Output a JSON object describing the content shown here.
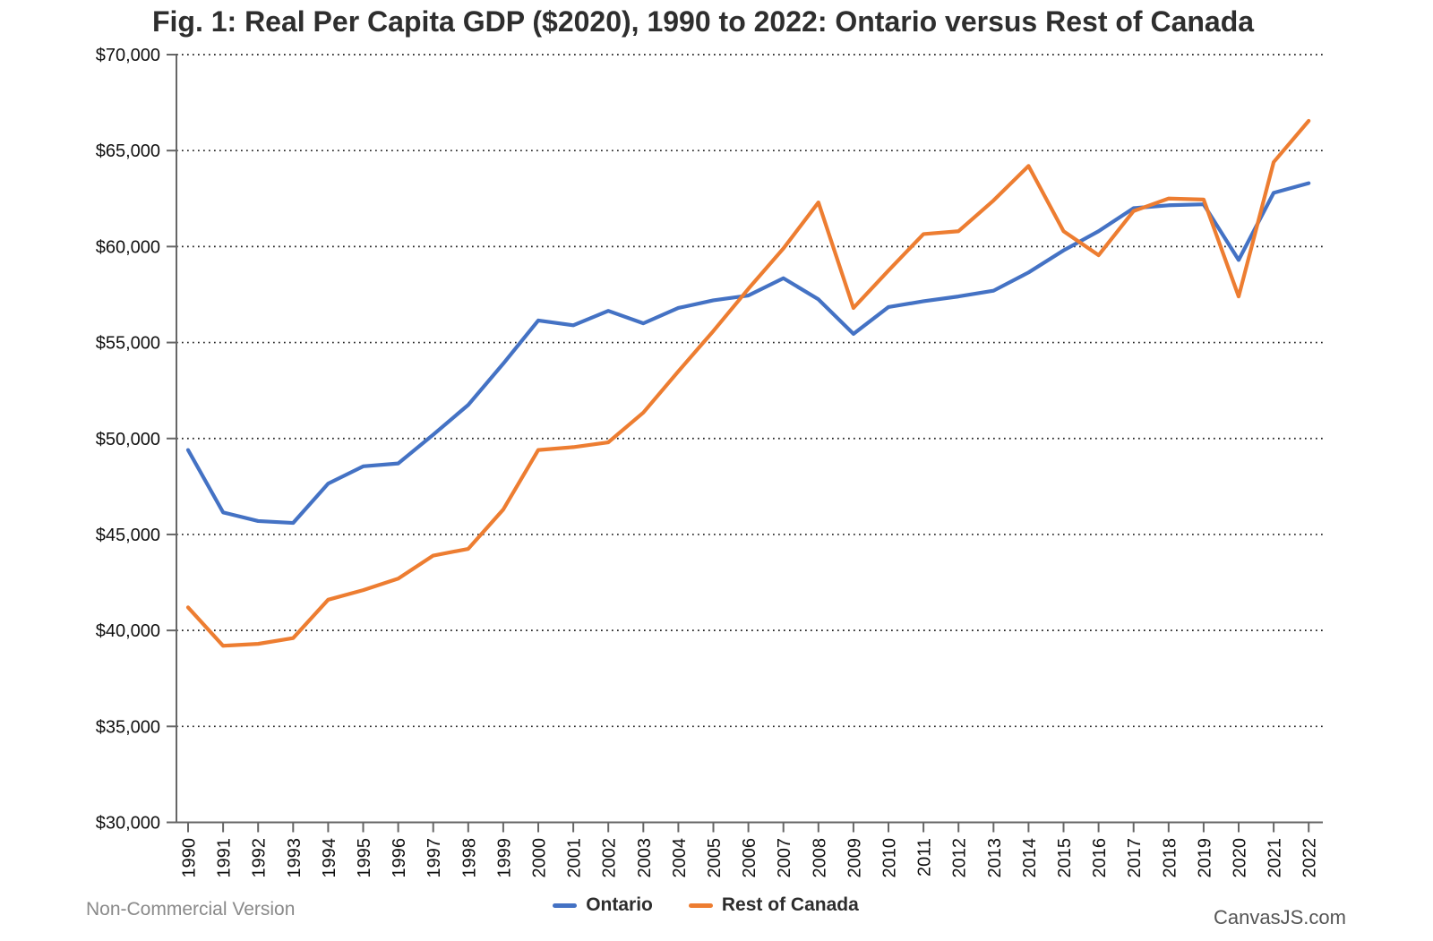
{
  "header": {
    "title": "Fig. 1: Real Per Capita GDP ($2020), 1990 to 2022: Ontario versus Rest of Canada"
  },
  "chart_data": {
    "type": "line",
    "title": "Fig. 1: Real Per Capita GDP ($2020), 1990 to 2022: Ontario versus Rest of Canada",
    "x_years": [
      1990,
      1991,
      1992,
      1993,
      1994,
      1995,
      1996,
      1997,
      1998,
      1999,
      2000,
      2001,
      2002,
      2003,
      2004,
      2005,
      2006,
      2007,
      2008,
      2009,
      2010,
      2011,
      2012,
      2013,
      2014,
      2015,
      2016,
      2017,
      2018,
      2019,
      2020,
      2021,
      2022
    ],
    "series": [
      {
        "name": "Ontario",
        "color": "#4472c4",
        "values": [
          49400,
          46150,
          45700,
          45600,
          47650,
          48550,
          48700,
          50200,
          51750,
          53900,
          56150,
          55900,
          56650,
          56000,
          56800,
          57200,
          57450,
          58350,
          57250,
          55450,
          56850,
          57150,
          57400,
          57700,
          58650,
          59800,
          60800,
          62000,
          62150,
          62200,
          59300,
          62800,
          63300
        ]
      },
      {
        "name": "Rest of Canada",
        "color": "#ed7d31",
        "values": [
          41200,
          39200,
          39300,
          39600,
          41600,
          42100,
          42700,
          43900,
          44250,
          46300,
          49400,
          49550,
          49800,
          51350,
          53500,
          55600,
          57800,
          59900,
          62300,
          56800,
          58750,
          60650,
          60800,
          62400,
          64200,
          60800,
          59550,
          61850,
          62500,
          62450,
          57400,
          64400,
          66550
        ]
      }
    ],
    "y_axis": {
      "min": 30000,
      "max": 70000,
      "interval": 5000,
      "tick_labels": [
        "$30,000",
        "$35,000",
        "$40,000",
        "$45,000",
        "$50,000",
        "$55,000",
        "$60,000",
        "$65,000",
        "$70,000"
      ]
    },
    "x_axis": {
      "tick_labels": [
        "1990",
        "1991",
        "1992",
        "1993",
        "1994",
        "1995",
        "1996",
        "1997",
        "1998",
        "1999",
        "2000",
        "2001",
        "2002",
        "2003",
        "2004",
        "2005",
        "2006",
        "2007",
        "2008",
        "2009",
        "2010",
        "2011",
        "2012",
        "2013",
        "2014",
        "2015",
        "2016",
        "2017",
        "2018",
        "2019",
        "2020",
        "2021",
        "2022"
      ]
    },
    "grid": "dotted-horizontal",
    "legend_position": "bottom"
  },
  "legend": {
    "items": [
      {
        "label": "Ontario",
        "color": "#4472c4"
      },
      {
        "label": "Rest of Canada",
        "color": "#ed7d31"
      }
    ]
  },
  "footer": {
    "left_text": "Non-Commercial Version",
    "right_text": "CanvasJS.com"
  }
}
